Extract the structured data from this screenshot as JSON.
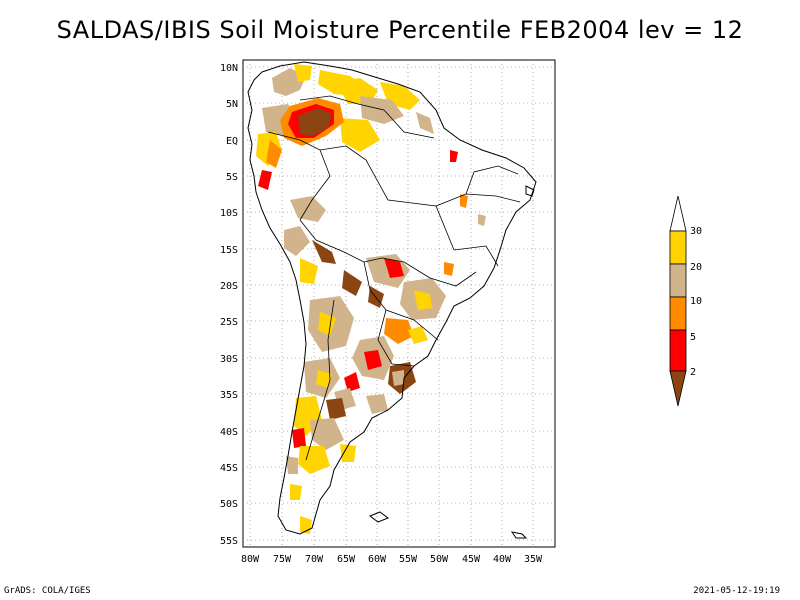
{
  "title": "SALDAS/IBIS Soil Moisture Percentile FEB2004 lev = 12",
  "map": {
    "lat_labels": [
      "10N",
      "5N",
      "EQ",
      "5S",
      "10S",
      "15S",
      "20S",
      "25S",
      "30S",
      "35S",
      "40S",
      "45S",
      "50S",
      "55S"
    ],
    "lon_labels": [
      "80W",
      "75W",
      "70W",
      "65W",
      "60W",
      "55W",
      "50W",
      "45W",
      "40W",
      "35W"
    ],
    "lat_range": [
      10,
      -56
    ],
    "lon_range": [
      -81,
      -33
    ]
  },
  "legend": {
    "levels": [
      "30",
      "20",
      "10",
      "5",
      "2"
    ],
    "colors": [
      "#ffffff",
      "#ffd400",
      "#d2b48c",
      "#ff8c00",
      "#ff0000",
      "#8b4513"
    ]
  },
  "footer": {
    "left": "GrADS: COLA/IGES",
    "right": "2021-05-12-19:19"
  }
}
